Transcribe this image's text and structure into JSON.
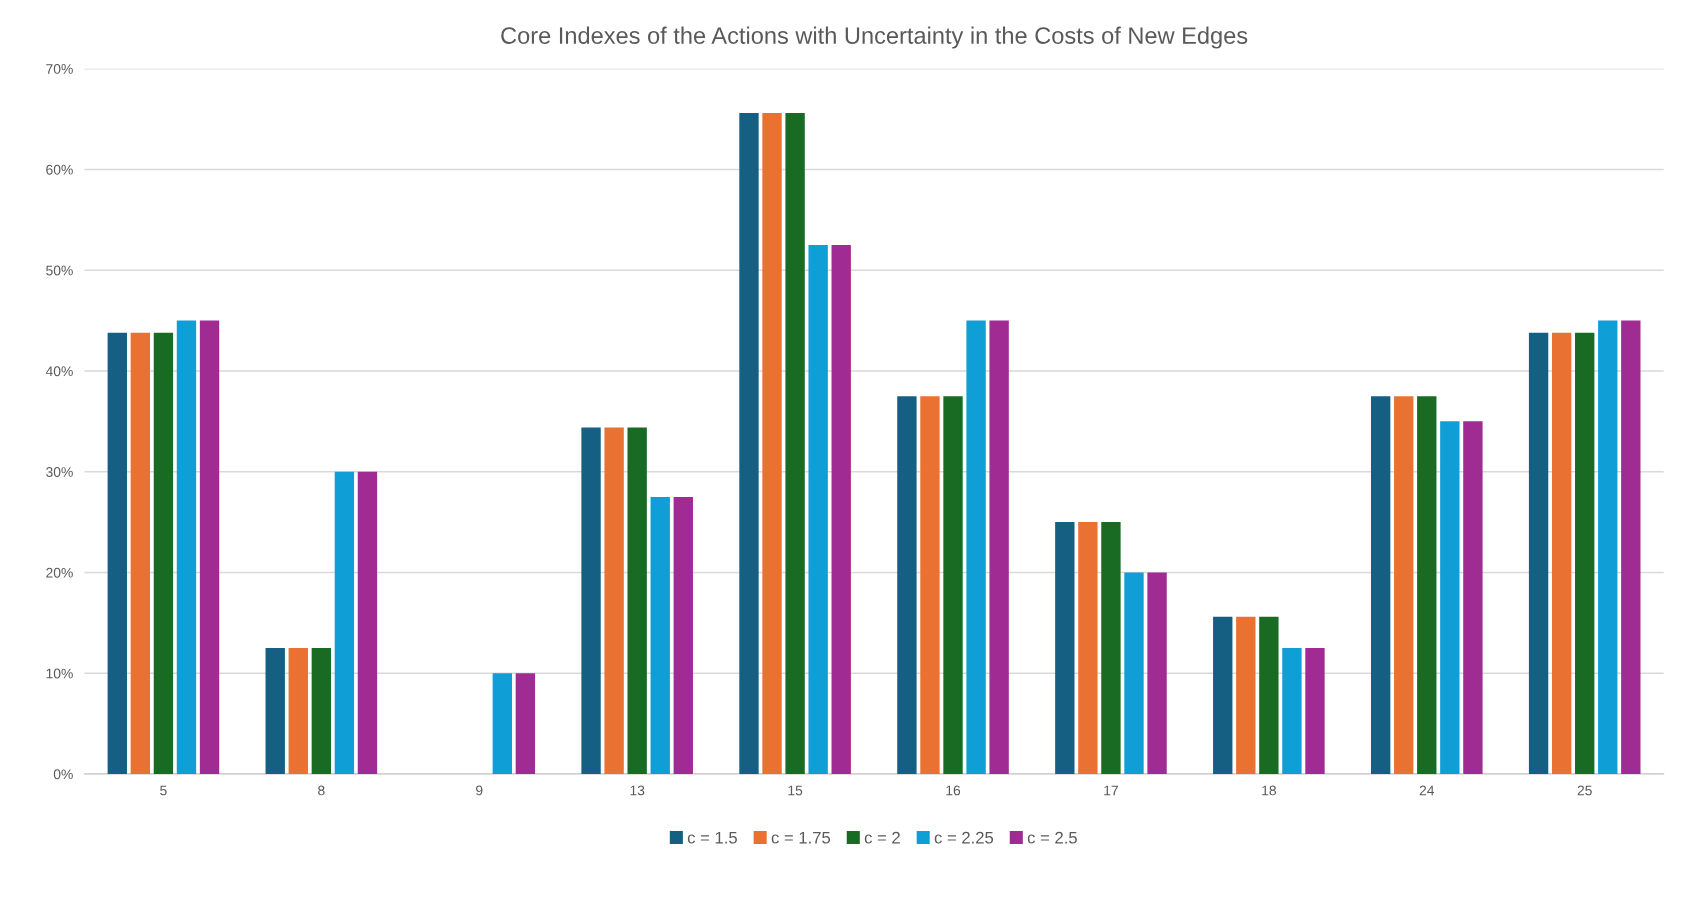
{
  "chart_data": {
    "type": "bar",
    "title": "Core Indexes of the Actions with Uncertainty in the Costs of New Edges",
    "categories": [
      "5",
      "8",
      "9",
      "13",
      "15",
      "16",
      "17",
      "18",
      "24",
      "25"
    ],
    "series": [
      {
        "name": "c = 1.5",
        "color": "#156082",
        "values": [
          43.8,
          12.5,
          0,
          34.4,
          65.6,
          37.5,
          25,
          15.6,
          37.5,
          43.8
        ]
      },
      {
        "name": "c = 1.75",
        "color": "#e97132",
        "values": [
          43.8,
          12.5,
          0,
          34.4,
          65.6,
          37.5,
          25,
          15.6,
          37.5,
          43.8
        ]
      },
      {
        "name": "c = 2",
        "color": "#196b24",
        "values": [
          43.8,
          12.5,
          0,
          34.4,
          65.6,
          37.5,
          25,
          15.6,
          37.5,
          43.8
        ]
      },
      {
        "name": "c = 2.25",
        "color": "#0f9ed5",
        "values": [
          45,
          30,
          10,
          27.5,
          52.5,
          45,
          20,
          12.5,
          35,
          45
        ]
      },
      {
        "name": "c = 2.5",
        "color": "#a02b93",
        "values": [
          45,
          30,
          10,
          27.5,
          52.5,
          45,
          20,
          12.5,
          35,
          45
        ]
      }
    ],
    "ylim": [
      0,
      70
    ],
    "yticks": [
      {
        "value": 0,
        "label": "0%"
      },
      {
        "value": 10,
        "label": "10%"
      },
      {
        "value": 20,
        "label": "20%"
      },
      {
        "value": 30,
        "label": "30%"
      },
      {
        "value": 40,
        "label": "40%"
      },
      {
        "value": 50,
        "label": "50%"
      },
      {
        "value": 60,
        "label": "60%"
      },
      {
        "value": 70,
        "label": "70%"
      }
    ],
    "grid": "y",
    "legend": "bottom"
  }
}
